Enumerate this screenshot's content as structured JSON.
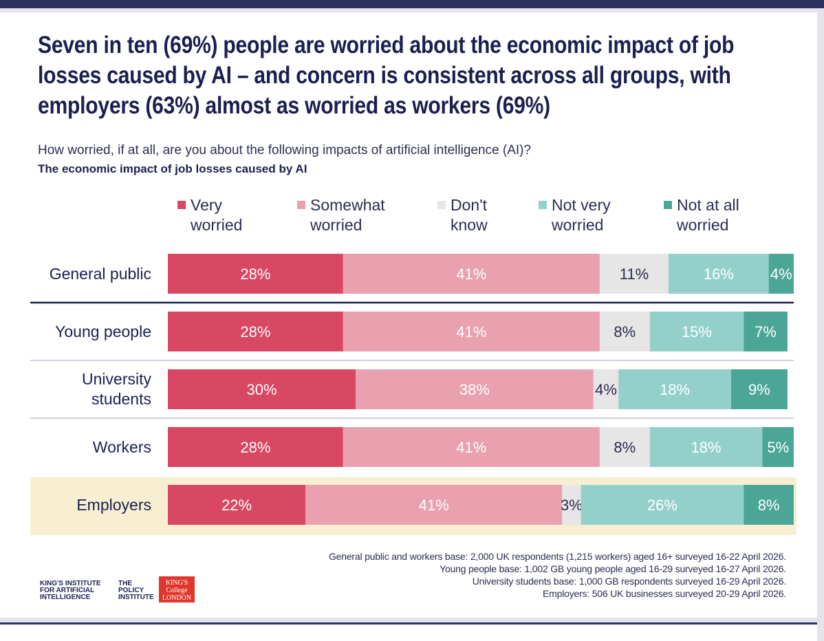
{
  "chart_data": {
    "type": "stacked-bar-horizontal",
    "title": "Seven in ten (69%) people are worried about the economic impact of job losses caused by AI – and concern is consistent across all groups, with employers (63%) almost as worried as workers (69%)",
    "subtitle": "How worried, if at all, are you about the following impacts of artificial intelligence (AI)?",
    "question": "The economic impact of job losses caused by AI",
    "categories": [
      "General public",
      "Young people",
      "University students",
      "Workers",
      "Employers"
    ],
    "xlim": [
      0,
      100
    ],
    "series": [
      {
        "name": "Very worried",
        "color": "#d84862",
        "label_color": "#ffffff",
        "values": [
          28,
          28,
          30,
          28,
          22
        ],
        "value_labels": [
          "28%",
          "28%",
          "30%",
          "28%",
          "22%"
        ]
      },
      {
        "name": "Somewhat worried",
        "color": "#e9a1af",
        "label_color": "#ffffff",
        "values": [
          41,
          41,
          38,
          41,
          41
        ],
        "value_labels": [
          "41%",
          "41%",
          "38%",
          "41%",
          "41%"
        ]
      },
      {
        "name": "Don't know",
        "color": "#e6e6e6",
        "label_color": "#2a2d4f",
        "values": [
          11,
          8,
          4,
          8,
          3
        ],
        "value_labels": [
          "11%",
          "8%",
          "4%",
          "8%",
          "3%"
        ]
      },
      {
        "name": "Not very worried",
        "color": "#94d0ca",
        "label_color": "#ffffff",
        "values": [
          16,
          15,
          18,
          18,
          26
        ],
        "value_labels": [
          "16%",
          "15%",
          "18%",
          "18%",
          "26%"
        ]
      },
      {
        "name": "Not at all worried",
        "color": "#4ba696",
        "label_color": "#ffffff",
        "values": [
          4,
          7,
          9,
          5,
          8
        ],
        "value_labels": [
          "4%",
          "7%",
          "9%",
          "5%",
          "8%"
        ]
      }
    ],
    "footnotes": [
      "General public and workers base: 2,000 UK respondents (1,215 workers) aged 16+ surveyed 16-22 April 2026.",
      "Young people base: 1,002 GB young people aged 16-29 surveyed 16-27 April 2026.",
      "University students base: 1,000 GB respondents surveyed 16-29 April 2026.",
      "Employers: 506 UK businesses surveyed 20-29 April 2026."
    ]
  },
  "logos": [
    "KING'S INSTITUTE FOR ARTIFICIAL INTELLIGENCE",
    "THE POLICY INSTITUTE",
    "KING'S College LONDON"
  ]
}
